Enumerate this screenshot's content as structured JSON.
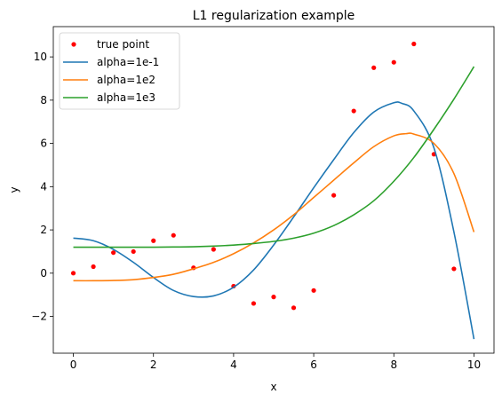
{
  "chart_data": {
    "type": "line",
    "title": "L1 regularization example",
    "xlabel": "x",
    "ylabel": "y",
    "xlim": [
      -0.5,
      10.5
    ],
    "ylim": [
      -3.7,
      11.4
    ],
    "xticks": [
      0,
      2,
      4,
      6,
      8,
      10
    ],
    "yticks": [
      -2,
      0,
      2,
      4,
      6,
      8,
      10
    ],
    "xtick_labels": [
      "0",
      "2",
      "4",
      "6",
      "8",
      "10"
    ],
    "ytick_labels": [
      "−2",
      "0",
      "2",
      "4",
      "6",
      "8",
      "10"
    ],
    "grid": false,
    "legend_position": "top-left",
    "scatter": {
      "name": "true point",
      "color": "#ff0000",
      "x": [
        0,
        0.5,
        1,
        1.5,
        2,
        2.5,
        3,
        3.5,
        4,
        4.5,
        5,
        5.5,
        6,
        6.5,
        7,
        7.5,
        8,
        8.5,
        9,
        9.5
      ],
      "y": [
        0.0,
        0.3,
        0.95,
        1.0,
        1.5,
        1.75,
        0.25,
        1.1,
        -0.6,
        -1.4,
        -1.1,
        -1.6,
        -0.8,
        3.6,
        7.5,
        9.5,
        9.75,
        10.6,
        5.5,
        0.2
      ]
    },
    "series": [
      {
        "name": "alpha=1e-1",
        "color": "#1f77b4",
        "x": [
          0,
          0.5,
          1,
          1.5,
          2,
          2.5,
          3,
          3.5,
          4,
          4.5,
          5,
          5.5,
          6,
          6.5,
          7,
          7.5,
          8,
          8.2,
          8.5,
          9,
          9.5,
          10
        ],
        "y": [
          1.62,
          1.5,
          1.1,
          0.5,
          -0.2,
          -0.8,
          -1.08,
          -1.05,
          -0.65,
          0.15,
          1.3,
          2.6,
          3.95,
          5.25,
          6.5,
          7.45,
          7.88,
          7.85,
          7.5,
          5.8,
          1.9,
          -3.05
        ]
      },
      {
        "name": "alpha=1e2",
        "color": "#ff7f0e",
        "x": [
          0,
          0.5,
          1,
          1.5,
          2,
          2.5,
          3,
          3.5,
          4,
          4.5,
          5,
          5.5,
          6,
          6.5,
          7,
          7.5,
          8,
          8.3,
          8.5,
          9,
          9.5,
          10
        ],
        "y": [
          -0.35,
          -0.35,
          -0.34,
          -0.3,
          -0.2,
          -0.05,
          0.2,
          0.5,
          0.9,
          1.4,
          2.0,
          2.7,
          3.5,
          4.3,
          5.1,
          5.85,
          6.35,
          6.45,
          6.43,
          6.0,
          4.6,
          1.9
        ]
      },
      {
        "name": "alpha=1e3",
        "color": "#2ca02c",
        "x": [
          0,
          0.5,
          1,
          1.5,
          2,
          2.5,
          3,
          3.5,
          4,
          4.5,
          5,
          5.5,
          6,
          6.5,
          7,
          7.5,
          8,
          8.5,
          9,
          9.5,
          10
        ],
        "y": [
          1.2,
          1.2,
          1.2,
          1.2,
          1.2,
          1.21,
          1.22,
          1.25,
          1.3,
          1.37,
          1.47,
          1.62,
          1.85,
          2.2,
          2.7,
          3.35,
          4.25,
          5.35,
          6.65,
          8.05,
          9.55
        ]
      }
    ]
  }
}
